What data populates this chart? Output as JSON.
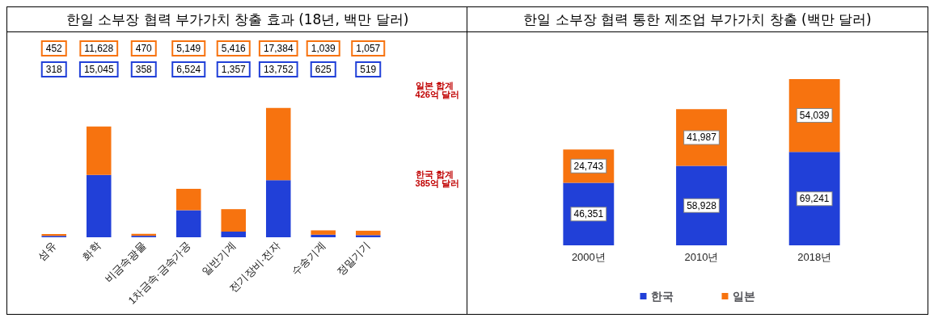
{
  "chart_data": [
    {
      "type": "bar",
      "title": "한일 소부장 협력 부가가치 창출 효과 (18년, 백만 달러)",
      "stacked": true,
      "categories": [
        "섬유",
        "화학",
        "비금속광물",
        "1차금속·금속가공",
        "일반기계",
        "전기장비·전자",
        "수송기계",
        "정밀기기"
      ],
      "series": [
        {
          "color": "#2140d8",
          "values": [
            318,
            15045,
            358,
            6524,
            1357,
            13752,
            625,
            519
          ],
          "value_labels": [
            "318",
            "15,045",
            "358",
            "6,524",
            "1,357",
            "13,752",
            "625",
            "519"
          ]
        },
        {
          "color": "#f7730f",
          "values": [
            452,
            11628,
            470,
            5149,
            5416,
            17384,
            1039,
            1057
          ],
          "value_labels": [
            "452",
            "11,628",
            "470",
            "5,149",
            "5,416",
            "17,384",
            "1,039",
            "1,057"
          ]
        }
      ],
      "annotations": [
        "일본 합계\n426억 달러",
        "한국 합계\n385억 달러"
      ]
    },
    {
      "type": "bar",
      "title": "한일 소부장 협력 통한 제조업 부가가치 창출 (백만 달러)",
      "stacked": true,
      "legend": "bottom",
      "categories": [
        "2000년",
        "2010년",
        "2018년"
      ],
      "series": [
        {
          "name": "한국",
          "color": "#2140d8",
          "values": [
            46351,
            58928,
            69241
          ],
          "value_labels": [
            "46,351",
            "58,928",
            "69,241"
          ]
        },
        {
          "name": "일본",
          "color": "#f7730f",
          "values": [
            24743,
            41987,
            54039
          ],
          "value_labels": [
            "24,743",
            "41,987",
            "54,039"
          ]
        }
      ]
    }
  ]
}
